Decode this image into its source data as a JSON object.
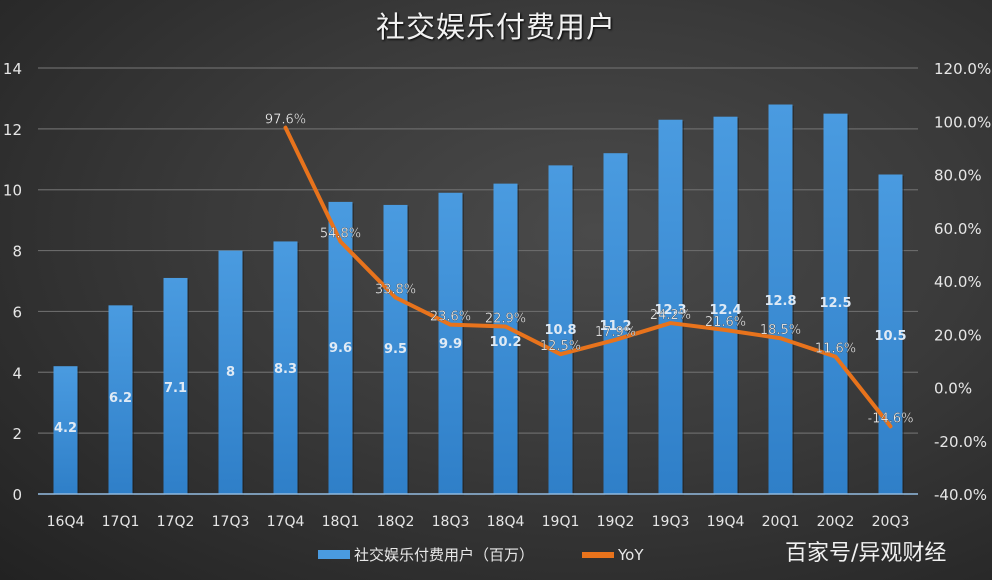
{
  "title": "社交娱乐付费用户",
  "legend": {
    "bar_label": "社交娱乐付费用户（百万）",
    "line_label": "YoY"
  },
  "watermark": "百家号/异观财经",
  "colors": {
    "bar": "#4a9be0",
    "bar_dark": "#2f7fc8",
    "line": "#e8731c",
    "grid": "#6a6a6a",
    "text": "#e6e6e6"
  },
  "chart_data": {
    "type": "bar+line",
    "title": "社交娱乐付费用户",
    "categories": [
      "16Q4",
      "17Q1",
      "17Q2",
      "17Q3",
      "17Q4",
      "18Q1",
      "18Q2",
      "18Q3",
      "18Q4",
      "19Q1",
      "19Q2",
      "19Q3",
      "19Q4",
      "20Q1",
      "20Q2",
      "20Q3"
    ],
    "series": [
      {
        "name": "社交娱乐付费用户（百万）",
        "type": "bar",
        "axis": "left",
        "values": [
          4.2,
          6.2,
          7.1,
          8,
          8.3,
          9.6,
          9.5,
          9.9,
          10.2,
          10.8,
          11.2,
          12.3,
          12.4,
          12.8,
          12.5,
          10.5
        ],
        "labels": [
          "4.2",
          "6.2",
          "7.1",
          "8",
          "8.3",
          "9.6",
          "9.5",
          "9.9",
          "10.2",
          "10.8",
          "11.2",
          "12.3",
          "12.4",
          "12.8",
          "12.5",
          "10.5"
        ]
      },
      {
        "name": "YoY",
        "type": "line",
        "axis": "right",
        "start_index": 4,
        "values": [
          97.6,
          54.8,
          33.8,
          23.6,
          22.9,
          12.5,
          17.9,
          24.2,
          21.6,
          18.5,
          11.6,
          -14.6
        ],
        "labels": [
          "97.6%",
          "54.8%",
          "33.8%",
          "23.6%",
          "22.9%",
          "12.5%",
          "17.9%",
          "24.2%",
          "21.6%",
          "18.5%",
          "11.6%",
          "-14.6%"
        ]
      }
    ],
    "left_axis": {
      "ylim": [
        0,
        14
      ],
      "ticks": [
        "0",
        "2",
        "4",
        "6",
        "8",
        "10",
        "12",
        "14"
      ]
    },
    "right_axis": {
      "ylim": [
        -40,
        120
      ],
      "ticks": [
        "-40.0%",
        "-20.0%",
        "0.0%",
        "20.0%",
        "40.0%",
        "60.0%",
        "80.0%",
        "100.0%",
        "120.0%"
      ]
    },
    "grid": true,
    "legend_position": "bottom"
  }
}
